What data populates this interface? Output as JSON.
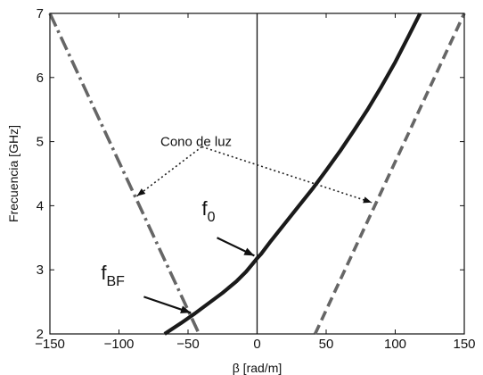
{
  "chart_data": {
    "type": "line",
    "title": "",
    "xlabel": "β [rad/m]",
    "ylabel": "Frecuencia [GHz]",
    "xlim": [
      -150,
      150
    ],
    "ylim": [
      2,
      7
    ],
    "xticks": [
      -150,
      -100,
      -50,
      0,
      50,
      100,
      150
    ],
    "yticks": [
      2,
      3,
      4,
      5,
      6,
      7
    ],
    "grid": false,
    "vertical_line_x": 0,
    "series": [
      {
        "style": "solid",
        "color": "#1a1a1a",
        "x": [
          -67,
          -55,
          -45,
          -35,
          -25,
          -15,
          -8,
          -3,
          0,
          3,
          10,
          20,
          30,
          40,
          50,
          60,
          70,
          80,
          90,
          100,
          110,
          118
        ],
        "y": [
          2.0,
          2.17,
          2.32,
          2.48,
          2.64,
          2.82,
          2.97,
          3.1,
          3.18,
          3.25,
          3.45,
          3.72,
          3.99,
          4.26,
          4.55,
          4.85,
          5.17,
          5.5,
          5.86,
          6.24,
          6.66,
          7.0
        ]
      },
      {
        "style": "dash-dot",
        "color": "#666666",
        "x": [
          -150,
          -42
        ],
        "y": [
          7.0,
          2.0
        ]
      },
      {
        "style": "dashed",
        "color": "#666666",
        "x": [
          42,
          150
        ],
        "y": [
          2.0,
          7.0
        ]
      }
    ],
    "annotations": [
      {
        "text": "Cono de luz",
        "x": -70,
        "y": 5.0,
        "arrows_to": [
          [
            -87,
            4.15
          ],
          [
            83,
            4.05
          ]
        ],
        "arrow_origin": [
          -40,
          4.92
        ],
        "arrow_style": "dotted"
      },
      {
        "text": "f",
        "sub": "0",
        "x": -40,
        "y": 3.85,
        "arrow_from": [
          -29,
          3.5
        ],
        "arrow_to": [
          -2,
          3.22
        ]
      },
      {
        "text": "f",
        "sub": "BF",
        "x": -113,
        "y": 2.85,
        "arrow_from": [
          -82,
          2.58
        ],
        "arrow_to": [
          -48,
          2.33
        ]
      }
    ]
  }
}
